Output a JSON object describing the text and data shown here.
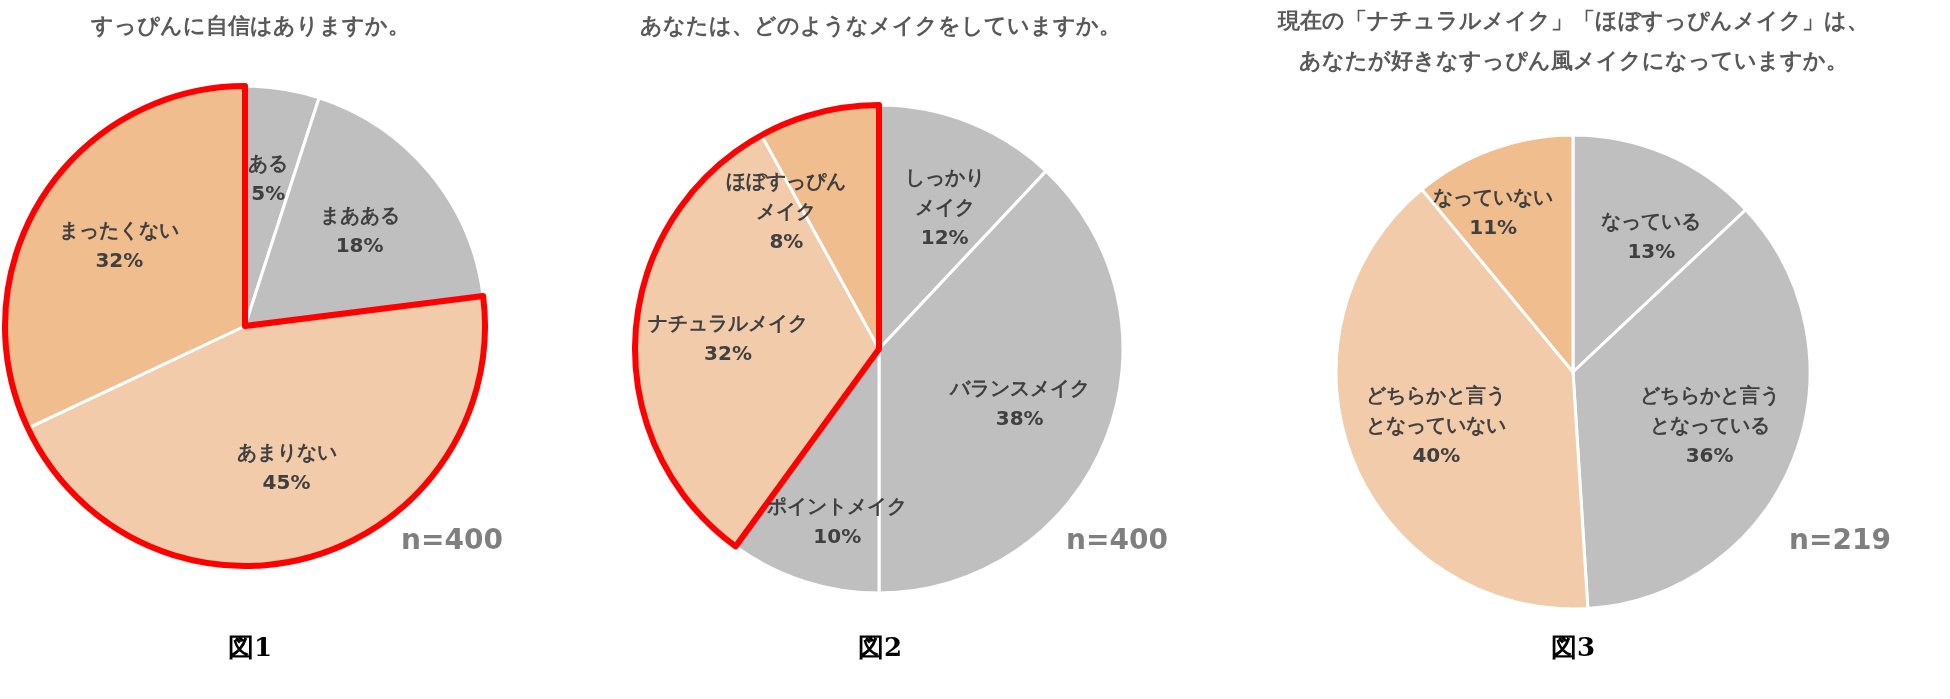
{
  "chart_data": [
    {
      "type": "pie",
      "title": "すっぴんに自信はありますか。",
      "categories": [
        "ある",
        "まあある",
        "あまりない",
        "まったくない"
      ],
      "values": [
        5,
        18,
        45,
        32
      ],
      "value_labels": [
        "5%",
        "18%",
        "45%",
        "32%"
      ],
      "colors": [
        "#bfbfbf",
        "#bfbfbf",
        "#f1cbaa",
        "#f0bd8e"
      ],
      "annotations": [
        "n=400",
        "図1"
      ]
    },
    {
      "type": "pie",
      "title": "あなたは、どのようなメイクをしていますか。",
      "categories": [
        "しっかりメイク",
        "バランスメイク",
        "ポイントメイク",
        "ナチュラルメイク",
        "ほぼすっぴんメイク"
      ],
      "values": [
        12,
        38,
        10,
        32,
        8
      ],
      "value_labels": [
        "12%",
        "38%",
        "10%",
        "32%",
        "8%"
      ],
      "colors": [
        "#bfbfbf",
        "#bfbfbf",
        "#bfbfbf",
        "#f1cbaa",
        "#f0bd8e"
      ],
      "annotations": [
        "n=400",
        "図2"
      ]
    },
    {
      "type": "pie",
      "title": "現在の「ナチュラルメイク」「ほぼすっぴんメイク」は、あなたが好きなすっぴん風メイクになっていますか。",
      "categories": [
        "なっている",
        "どちらかと言うとなっている",
        "どちらかと言うとなっていない",
        "なっていない"
      ],
      "values": [
        13,
        36,
        40,
        11
      ],
      "value_labels": [
        "13%",
        "36%",
        "40%",
        "11%"
      ],
      "colors": [
        "#bfbfbf",
        "#bfbfbf",
        "#f1cbaa",
        "#f0bd8e"
      ],
      "annotations": [
        "n=219",
        "図3"
      ]
    }
  ]
}
